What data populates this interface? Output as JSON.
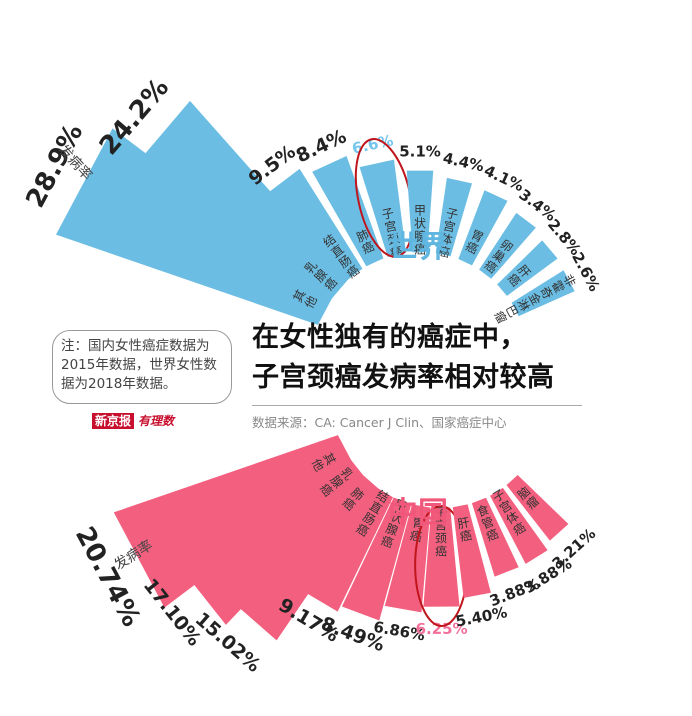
{
  "note": {
    "text": "注：国内女性癌症数据为2015年数据，世界女性数据为2018年数据。"
  },
  "brand": {
    "name": "新京报",
    "column": "有理数"
  },
  "headline": {
    "line1": "在女性独有的癌症中，",
    "line2": "子宫颈癌发病率相对较高"
  },
  "source": "数据来源：CA: Cancer J Clin、国家癌症中心",
  "world": {
    "title": "世界",
    "axis_label": "发病率"
  },
  "china": {
    "title": "中国",
    "axis_label": "发病率"
  },
  "colors": {
    "world": "#6bbde3",
    "world_highlight": "#74c6ee",
    "china": "#f3607f",
    "china_highlight": "#f4709a",
    "circle": "#c0151c",
    "text": "#222222"
  },
  "chart_data": [
    {
      "type": "bar",
      "subtype": "radial",
      "title": "世界",
      "ylabel": "发病率",
      "categories": [
        "其他",
        "乳腺癌",
        "结直肠癌",
        "肺癌",
        "子宫颈癌",
        "甲状腺癌",
        "子宫体癌",
        "胃癌",
        "卵巢癌",
        "肝癌",
        "非霍奇金淋巴瘤"
      ],
      "values": [
        28.9,
        24.2,
        9.5,
        8.4,
        6.6,
        5.1,
        4.4,
        4.1,
        3.4,
        2.8,
        2.6
      ],
      "labels": [
        "28.9%",
        "24.2%",
        "9.5%",
        "8.4%",
        "6.6%",
        "5.1%",
        "4.4%",
        "4.1%",
        "3.4%",
        "2.8%",
        "2.6%"
      ],
      "highlight": "子宫颈癌",
      "unit": "%"
    },
    {
      "type": "bar",
      "subtype": "radial",
      "title": "中国",
      "ylabel": "发病率",
      "categories": [
        "其他",
        "乳腺癌",
        "肺癌",
        "结直肠癌",
        "甲状腺癌",
        "胃癌",
        "子宫颈癌",
        "肝癌",
        "食管癌",
        "子宫体癌",
        "脑瘤"
      ],
      "values": [
        20.74,
        17.1,
        15.02,
        9.17,
        8.49,
        6.86,
        6.25,
        5.4,
        3.88,
        3.88,
        3.21
      ],
      "labels": [
        "20.74%",
        "17.10%",
        "15.02%",
        "9.17%",
        "8.49%",
        "6.86%",
        "6.25%",
        "5.40%",
        "3.88%",
        "3.88%",
        "3.21%"
      ],
      "highlight": "子宫颈癌",
      "unit": "%"
    }
  ]
}
